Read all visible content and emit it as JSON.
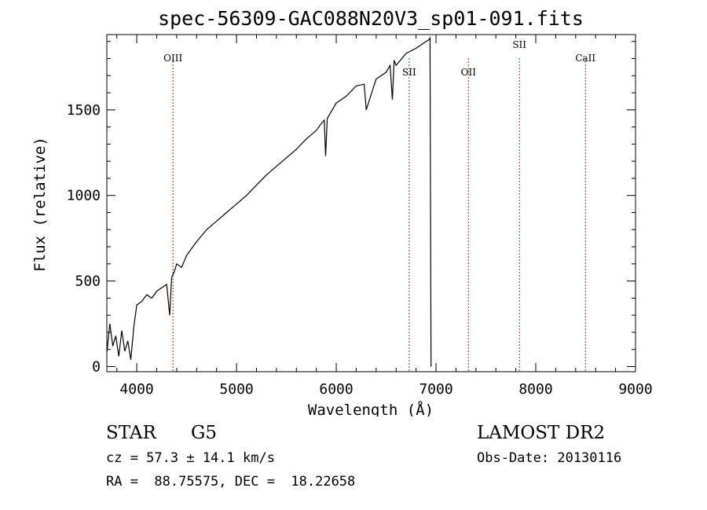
{
  "chart_data": {
    "type": "line",
    "title": "spec-56309-GAC088N20V3_sp01-091.fits",
    "xlabel": "Wavelength (Å)",
    "ylabel": "Flux (relative)",
    "xlim": [
      3700,
      9000
    ],
    "ylim": [
      -30,
      1940
    ],
    "xticks": [
      4000,
      5000,
      6000,
      7000,
      8000,
      9000
    ],
    "yticks": [
      0,
      500,
      1000,
      1500
    ],
    "grid": false,
    "series": [
      {
        "color": "#000000",
        "x": [
          3700,
          3730,
          3760,
          3790,
          3820,
          3850,
          3880,
          3910,
          3940,
          3970,
          4000,
          4050,
          4100,
          4150,
          4200,
          4250,
          4300,
          4330,
          4350,
          4380,
          4400,
          4450,
          4500,
          4600,
          4700,
          4800,
          4900,
          5000,
          5100,
          5200,
          5300,
          5400,
          5500,
          5600,
          5700,
          5800,
          5850,
          5880,
          5893,
          5910,
          6000,
          6100,
          6200,
          6280,
          6300,
          6400,
          6500,
          6540,
          6563,
          6580,
          6600,
          6700,
          6800,
          6850,
          6900,
          6930,
          6940,
          6950
        ],
        "y": [
          80,
          250,
          120,
          180,
          60,
          210,
          90,
          150,
          40,
          230,
          360,
          380,
          420,
          400,
          440,
          460,
          480,
          300,
          520,
          560,
          600,
          580,
          650,
          730,
          800,
          850,
          900,
          950,
          1000,
          1060,
          1120,
          1170,
          1220,
          1270,
          1330,
          1380,
          1420,
          1440,
          1230,
          1450,
          1540,
          1580,
          1640,
          1650,
          1500,
          1680,
          1720,
          1760,
          1560,
          1790,
          1760,
          1830,
          1860,
          1880,
          1900,
          1910,
          1920,
          0
        ]
      }
    ],
    "lines": [
      {
        "label": "OIII",
        "x": 4363
      },
      {
        "label": "SII",
        "x": 6731
      },
      {
        "label": "OII",
        "x": 7325
      },
      {
        "label": "SII",
        "x": 7836
      },
      {
        "label": "CaII",
        "x": 8498
      }
    ],
    "line_color": "#b22222"
  },
  "info": {
    "object_type": "STAR",
    "subclass": "G5",
    "survey": "LAMOST DR2",
    "cz": "cz = 57.3 ± 14.1 km/s",
    "obs_date": "Obs-Date: 20130116",
    "coords": "RA =  88.75575, DEC =  18.22658"
  }
}
